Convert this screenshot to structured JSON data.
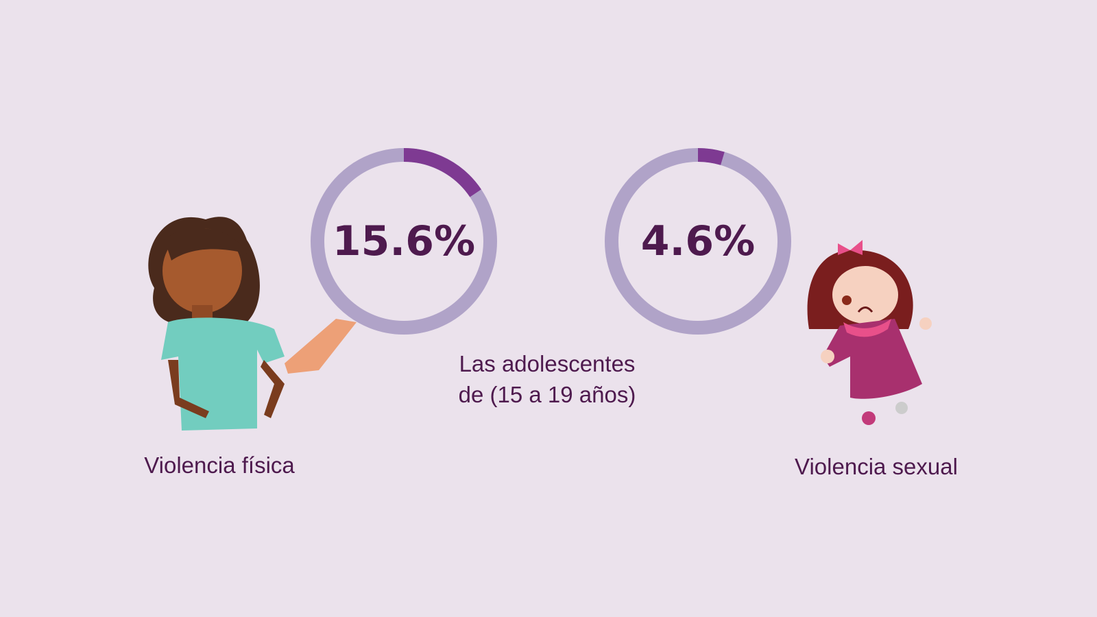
{
  "chart_data": {
    "type": "pie",
    "subtitle_lines": [
      "Las adolescentes",
      "de (15 a 19 años)"
    ],
    "gauges": [
      {
        "label": "Violencia física",
        "value": 15.6,
        "display": "15.6%"
      },
      {
        "label": "Violencia sexual",
        "value": 4.6,
        "display": "4.6%"
      }
    ],
    "colors": {
      "background": "#ebe2ec",
      "track": "#b0a3c8",
      "fill": "#7e3a92",
      "text": "#4e1a4e"
    }
  }
}
